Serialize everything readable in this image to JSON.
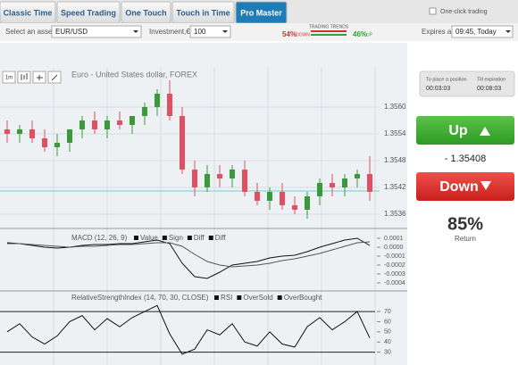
{
  "tabs": [
    "Classic Time",
    "Speed Trading",
    "One Touch",
    "Touch in Time",
    "Pro Master"
  ],
  "active_tab": 4,
  "one_click": "One-click trading",
  "asset": {
    "label": "Select an asset",
    "value": "EUR/USD"
  },
  "investment": {
    "label": "Investment,€",
    "value": "100"
  },
  "trends": {
    "title": "TRADING TRENDS",
    "down": "54%",
    "down_label": "DOWN",
    "up": "46%",
    "up_label": "UP"
  },
  "expires": {
    "label": "Expires at",
    "value": "09:45, Today"
  },
  "toolbar": [
    "1m"
  ],
  "chart": {
    "title": "Euro - United States dollar, FOREX",
    "open": [
      1.3555,
      1.3554,
      1.3555,
      1.3553,
      1.3551,
      1.3552,
      1.3555,
      1.3557,
      1.3555,
      1.3557,
      1.3556,
      1.3558,
      1.356,
      1.3563,
      1.3558,
      1.3546,
      1.3542,
      1.3545,
      1.3544,
      1.3546,
      1.3541,
      1.3539,
      1.3541,
      1.3538,
      1.3537,
      1.354,
      1.3543,
      1.3542,
      1.3544,
      1.3545
    ],
    "high": [
      1.3557,
      1.3556,
      1.3557,
      1.3555,
      1.3554,
      1.3555,
      1.3558,
      1.3559,
      1.3558,
      1.3559,
      1.3558,
      1.3561,
      1.3564,
      1.3566,
      1.356,
      1.3548,
      1.3547,
      1.3547,
      1.3547,
      1.3548,
      1.3543,
      1.3542,
      1.3543,
      1.354,
      1.3541,
      1.3544,
      1.3545,
      1.3545,
      1.3546,
      1.3549
    ],
    "low": [
      1.3552,
      1.3552,
      1.3552,
      1.355,
      1.3549,
      1.355,
      1.3553,
      1.3554,
      1.3553,
      1.3555,
      1.3554,
      1.3556,
      1.3558,
      1.3557,
      1.3545,
      1.354,
      1.3541,
      1.3542,
      1.3542,
      1.354,
      1.3538,
      1.3537,
      1.3537,
      1.3536,
      1.3535,
      1.3538,
      1.354,
      1.354,
      1.3542,
      1.3539
    ],
    "close": [
      1.3554,
      1.3555,
      1.3553,
      1.3551,
      1.3552,
      1.3555,
      1.3557,
      1.3555,
      1.3557,
      1.3556,
      1.3558,
      1.356,
      1.3563,
      1.3558,
      1.3546,
      1.3542,
      1.3545,
      1.3544,
      1.3546,
      1.3541,
      1.3539,
      1.3541,
      1.3538,
      1.3537,
      1.354,
      1.3543,
      1.3542,
      1.3544,
      1.3545,
      1.3541
    ],
    "ylim": [
      1.3533,
      1.3569
    ],
    "yticks": [
      {
        "value": 1.356,
        "label": "1.3560"
      },
      {
        "value": 1.3554,
        "label": "1.3554"
      },
      {
        "value": 1.3548,
        "label": "1.3548"
      },
      {
        "value": 1.3542,
        "label": "1.3542"
      },
      {
        "value": 1.3536,
        "label": "1.3536"
      }
    ]
  },
  "macd": {
    "title": "MACD (12, 26, 9)",
    "legend": [
      "Value",
      "Sign",
      "Diff",
      "Diff"
    ],
    "value": [
      5e-05,
      4e-05,
      2e-05,
      0.0,
      -1e-05,
      0.0,
      2e-05,
      3e-05,
      3e-05,
      4e-05,
      4e-05,
      6e-05,
      8e-05,
      4e-05,
      -0.00018,
      -0.00033,
      -0.00035,
      -0.00028,
      -0.0002,
      -0.00018,
      -0.00016,
      -0.00012,
      -0.0001,
      -9e-05,
      -5e-05,
      0.0,
      4e-05,
      8e-05,
      0.0001,
      2e-05
    ],
    "signal": [
      4e-05,
      4e-05,
      3e-05,
      2e-05,
      1e-05,
      0.0,
      1e-05,
      1e-05,
      2e-05,
      3e-05,
      3e-05,
      4e-05,
      5e-05,
      5e-05,
      1e-05,
      -8e-05,
      -0.00016,
      -0.0002,
      -0.00022,
      -0.00021,
      -0.0002,
      -0.00018,
      -0.00015,
      -0.00013,
      -0.0001,
      -7e-05,
      -3e-05,
      1e-05,
      5e-05,
      6e-05
    ],
    "ylim": [
      -0.00045,
      0.00015
    ],
    "yticks": [
      {
        "value": 0.0001,
        "label": "0.0001"
      },
      {
        "value": 0,
        "label": "0.0000"
      },
      {
        "value": -0.0001,
        "label": "-0.0001"
      },
      {
        "value": -0.0002,
        "label": "-0.0002"
      },
      {
        "value": -0.0003,
        "label": "-0.0003"
      },
      {
        "value": -0.0004,
        "label": "-0.0004"
      }
    ]
  },
  "rsi": {
    "title": "RelativeStrengthIndex (14, 70, 30, CLOSE)",
    "legend": [
      "RSI",
      "OverSold",
      "OverBought"
    ],
    "values": [
      50,
      58,
      45,
      38,
      46,
      60,
      66,
      52,
      63,
      55,
      64,
      70,
      76,
      48,
      28,
      33,
      52,
      47,
      58,
      40,
      36,
      50,
      38,
      35,
      55,
      64,
      52,
      60,
      70,
      44
    ],
    "overbought": 70,
    "oversold": 30,
    "ylim": [
      20,
      85
    ],
    "yticks": [
      70,
      60,
      50,
      40,
      30
    ]
  },
  "timers": {
    "place_label": "To place a position",
    "place_value": "00:03:03",
    "exp_label": "Till expiration",
    "exp_value": "00:08:03"
  },
  "up_button": "Up",
  "price": "- 1.35408",
  "down_button": "Down",
  "payout": "85%",
  "payout_label": "Return"
}
